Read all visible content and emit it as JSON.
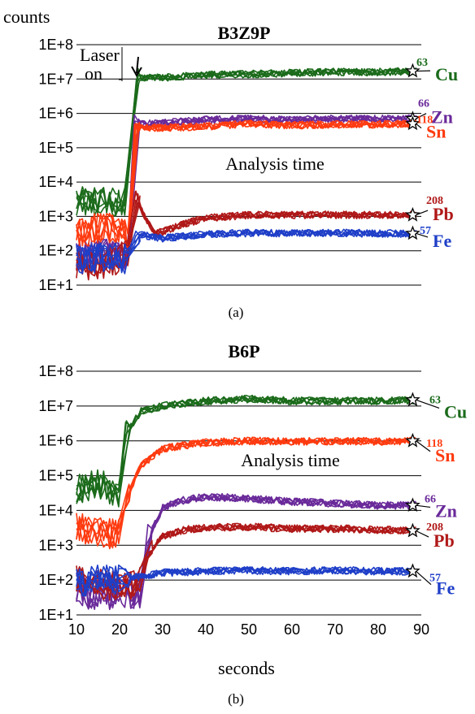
{
  "figure": {
    "ylabel": "counts",
    "xlabel": "seconds",
    "y_ticks": [
      "1E+1",
      "1E+2",
      "1E+3",
      "1E+4",
      "1E+5",
      "1E+6",
      "1E+7",
      "1E+8"
    ],
    "x_ticks": [
      "10",
      "20",
      "30",
      "40",
      "50",
      "60",
      "70",
      "80",
      "90"
    ]
  },
  "chart_data": [
    {
      "type": "line",
      "panel_label": "(a)",
      "title": "B3Z9P",
      "xlabel": "",
      "ylabel": "counts",
      "yscale": "log",
      "ylim": [
        10,
        100000000
      ],
      "xlim": [
        10,
        90
      ],
      "grid": "horizontal",
      "annotations": [
        {
          "text_line1": "Laser",
          "text_line2": "on",
          "x": 24,
          "y": 20000000
        },
        {
          "text": "Analysis time",
          "x": 50,
          "y": 80000
        }
      ],
      "series": [
        {
          "name": "Cu",
          "mass": "63",
          "color": "#1b6b1b",
          "baseline_x": [
            10,
            16,
            20,
            21.5
          ],
          "baseline_y": [
            2500,
            3000,
            2500,
            3000
          ],
          "signal_x": [
            24,
            30,
            40,
            50,
            60,
            70,
            80,
            89
          ],
          "signal_y": [
            11000000,
            11000000,
            13000000,
            14000000,
            15000000,
            16000000,
            16000000,
            17000000
          ],
          "label_y": 14000000
        },
        {
          "name": "Zn",
          "mass": "66",
          "color": "#6a2a9a",
          "baseline_x": [
            10,
            20,
            22.5
          ],
          "baseline_y": [
            80,
            80,
            80
          ],
          "signal_x": [
            24,
            30,
            40,
            50,
            60,
            70,
            80,
            89
          ],
          "signal_y": [
            500000,
            520000,
            650000,
            700000,
            650000,
            700000,
            700000,
            700000
          ],
          "label_y": 800000
        },
        {
          "name": "Sn",
          "mass": "118",
          "color": "#ff3b10",
          "baseline_x": [
            10,
            16,
            20,
            22.5
          ],
          "baseline_y": [
            300,
            500,
            400,
            200
          ],
          "signal_x": [
            24,
            30,
            40,
            50,
            60,
            70,
            80,
            89
          ],
          "signal_y": [
            380000,
            380000,
            420000,
            500000,
            450000,
            480000,
            480000,
            500000
          ],
          "label_y": 300000
        },
        {
          "name": "Pb",
          "mass": "208",
          "color": "#b01818",
          "baseline_x": [
            10,
            16,
            20,
            22.5
          ],
          "baseline_y": [
            40,
            40,
            60,
            100
          ],
          "signal_x": [
            24,
            28,
            35,
            40,
            50,
            60,
            70,
            80,
            89
          ],
          "signal_y": [
            3000,
            300,
            600,
            900,
            1100,
            1100,
            1100,
            1100,
            1100
          ],
          "label_y": 1200
        },
        {
          "name": "Fe",
          "mass": "57",
          "color": "#1f3fc8",
          "baseline_x": [
            10,
            16,
            20,
            22.5
          ],
          "baseline_y": [
            60,
            60,
            60,
            60
          ],
          "signal_x": [
            24,
            30,
            40,
            50,
            60,
            70,
            80,
            89
          ],
          "signal_y": [
            300,
            230,
            300,
            330,
            320,
            330,
            320,
            320
          ],
          "label_y": 200
        }
      ]
    },
    {
      "type": "line",
      "panel_label": "(b)",
      "title": "B6P",
      "xlabel": "seconds",
      "ylabel": "",
      "yscale": "log",
      "ylim": [
        10,
        100000000
      ],
      "xlim": [
        10,
        90
      ],
      "grid": "horizontal",
      "annotations": [
        {
          "text": "Analysis time",
          "x": 47,
          "y": 200000
        }
      ],
      "series": [
        {
          "name": "Cu",
          "mass": "63",
          "color": "#1b6b1b",
          "baseline_x": [
            10,
            15,
            20
          ],
          "baseline_y": [
            40000,
            60000,
            30000
          ],
          "signal_x": [
            22,
            25,
            30,
            40,
            50,
            60,
            70,
            80,
            89
          ],
          "signal_y": [
            2000000,
            7000000,
            10000000,
            14000000,
            16000000,
            14000000,
            14000000,
            14000000,
            15000000
          ],
          "label_y": 7000000
        },
        {
          "name": "Sn",
          "mass": "118",
          "color": "#ff3b10",
          "baseline_x": [
            10,
            15,
            20
          ],
          "baseline_y": [
            3000,
            2500,
            2000
          ],
          "signal_x": [
            22,
            25,
            30,
            40,
            50,
            60,
            70,
            80,
            89
          ],
          "signal_y": [
            30000,
            200000,
            600000,
            900000,
            1000000,
            950000,
            1000000,
            950000,
            1000000
          ],
          "label_y": 400000
        },
        {
          "name": "Zn",
          "mass": "66",
          "color": "#6a2a9a",
          "baseline_x": [
            10,
            15,
            20,
            25
          ],
          "baseline_y": [
            40,
            40,
            40,
            40
          ],
          "signal_x": [
            27,
            30,
            35,
            40,
            50,
            60,
            70,
            80,
            89
          ],
          "signal_y": [
            2000,
            12000,
            20000,
            25000,
            22000,
            18000,
            16000,
            14000,
            14000
          ],
          "label_y": 10000
        },
        {
          "name": "Pb",
          "mass": "208",
          "color": "#b01818",
          "baseline_x": [
            10,
            15,
            20,
            25
          ],
          "baseline_y": [
            100,
            80,
            60,
            100
          ],
          "signal_x": [
            27,
            30,
            35,
            40,
            50,
            60,
            70,
            80,
            89
          ],
          "signal_y": [
            700,
            1800,
            2800,
            3200,
            3400,
            3000,
            3000,
            2800,
            2600
          ],
          "label_y": 1400
        },
        {
          "name": "Fe",
          "mass": "57",
          "color": "#1f3fc8",
          "baseline_x": [
            10,
            15,
            20
          ],
          "baseline_y": [
            90,
            100,
            110
          ],
          "signal_x": [
            22,
            25,
            30,
            40,
            50,
            60,
            70,
            80,
            89
          ],
          "signal_y": [
            110,
            130,
            160,
            180,
            190,
            180,
            190,
            180,
            180
          ],
          "label_y": 60
        }
      ]
    }
  ]
}
